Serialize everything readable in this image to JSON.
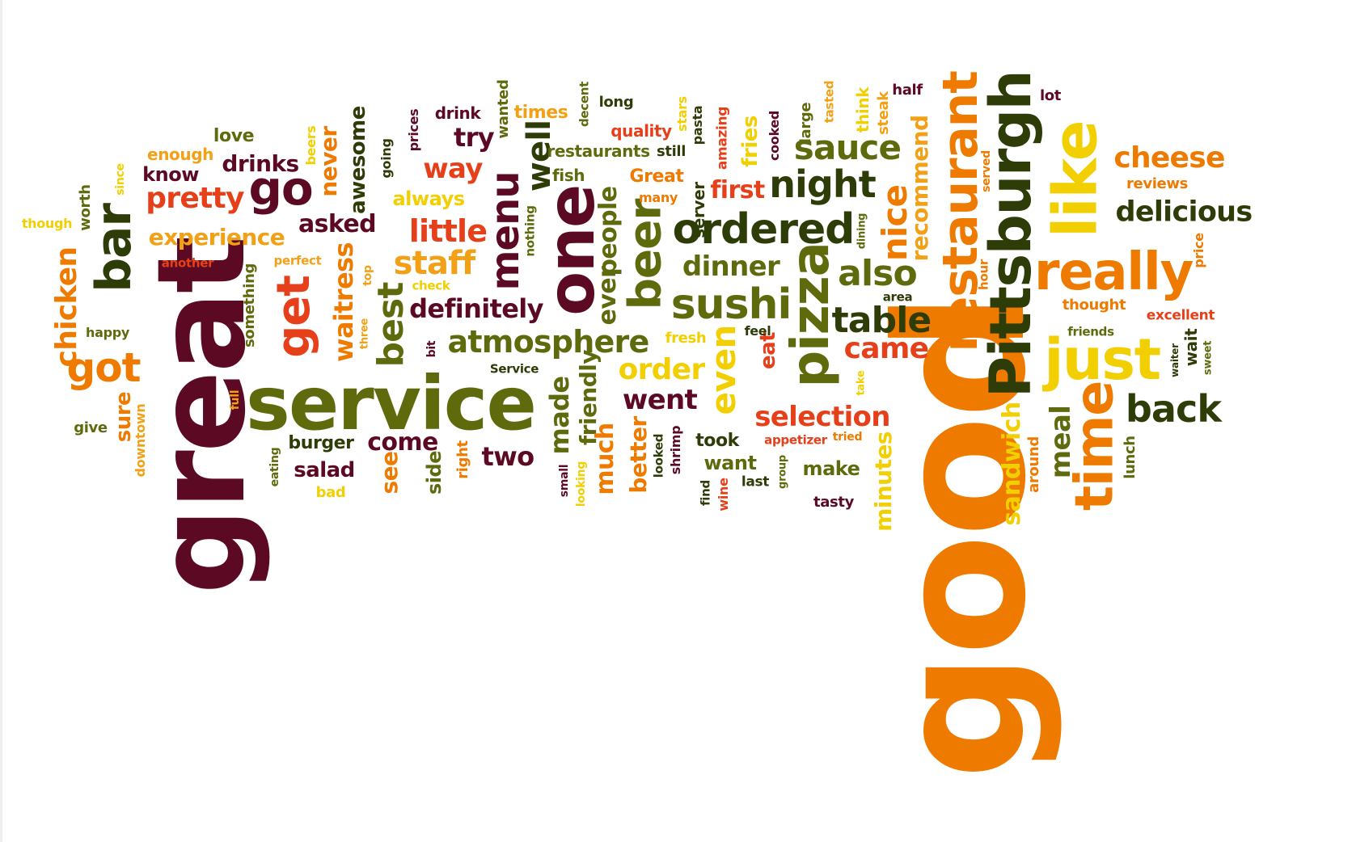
{
  "palette": {
    "maroon": "#5c0a24",
    "dark_olive": "#2e3c08",
    "olive": "#5f6a0c",
    "orange": "#ee7a00",
    "light_orange": "#f2a116",
    "yellow": "#f2cf00",
    "red_orange": "#e6401a",
    "background": "#ffffff"
  },
  "words": [
    "good",
    "great",
    "service",
    "Pittsburgh",
    "restaurant",
    "like",
    "one",
    "just",
    "time",
    "pizza",
    "really",
    "beer",
    "sushi",
    "ordered",
    "bar",
    "go",
    "get",
    "night",
    "sauce",
    "menu",
    "cheese",
    "delicious",
    "also",
    "table",
    "back",
    "got",
    "best",
    "atmosphere",
    "even",
    "nice",
    "staff",
    "little",
    "came",
    "definitely",
    "pretty",
    "went",
    "order",
    "selection",
    "chicken",
    "dinner",
    "well",
    "waitress",
    "try",
    "way",
    "experience",
    "made",
    "friendly",
    "people",
    "ever",
    "much",
    "two",
    "come",
    "see",
    "meal",
    "sandwich",
    "minutes",
    "better",
    "eat",
    "first",
    "recommend",
    "asked",
    "drinks",
    "know",
    "never",
    "awesome",
    "reviews",
    "love",
    "enough",
    "always",
    "side",
    "salad",
    "burger",
    "sure",
    "make",
    "want",
    "took",
    "restaurants",
    "fries",
    "Great",
    "quality",
    "times",
    "drink",
    "fish",
    "long",
    "lot",
    "half",
    "think",
    "steak",
    "large",
    "tasted",
    "cooked",
    "amazing",
    "pasta",
    "stars",
    "still",
    "many",
    "server",
    "decent",
    "wanted",
    "prices",
    "beers",
    "since",
    "worth",
    "though",
    "going",
    "nothing",
    "another",
    "perfect",
    "something",
    "top",
    "check",
    "happy",
    "three",
    "bit",
    "Service",
    "full",
    "give",
    "downtown",
    "eating",
    "bad",
    "right",
    "small",
    "looking",
    "looked",
    "shrimp",
    "find",
    "wine",
    "last",
    "group",
    "appetizer",
    "tried",
    "tasty",
    "take",
    "dining",
    "area",
    "hour",
    "served",
    "around",
    "lunch",
    "thought",
    "excellent",
    "friends",
    "price",
    "wait",
    "sweet",
    "waiter",
    "fresh",
    "feel"
  ]
}
